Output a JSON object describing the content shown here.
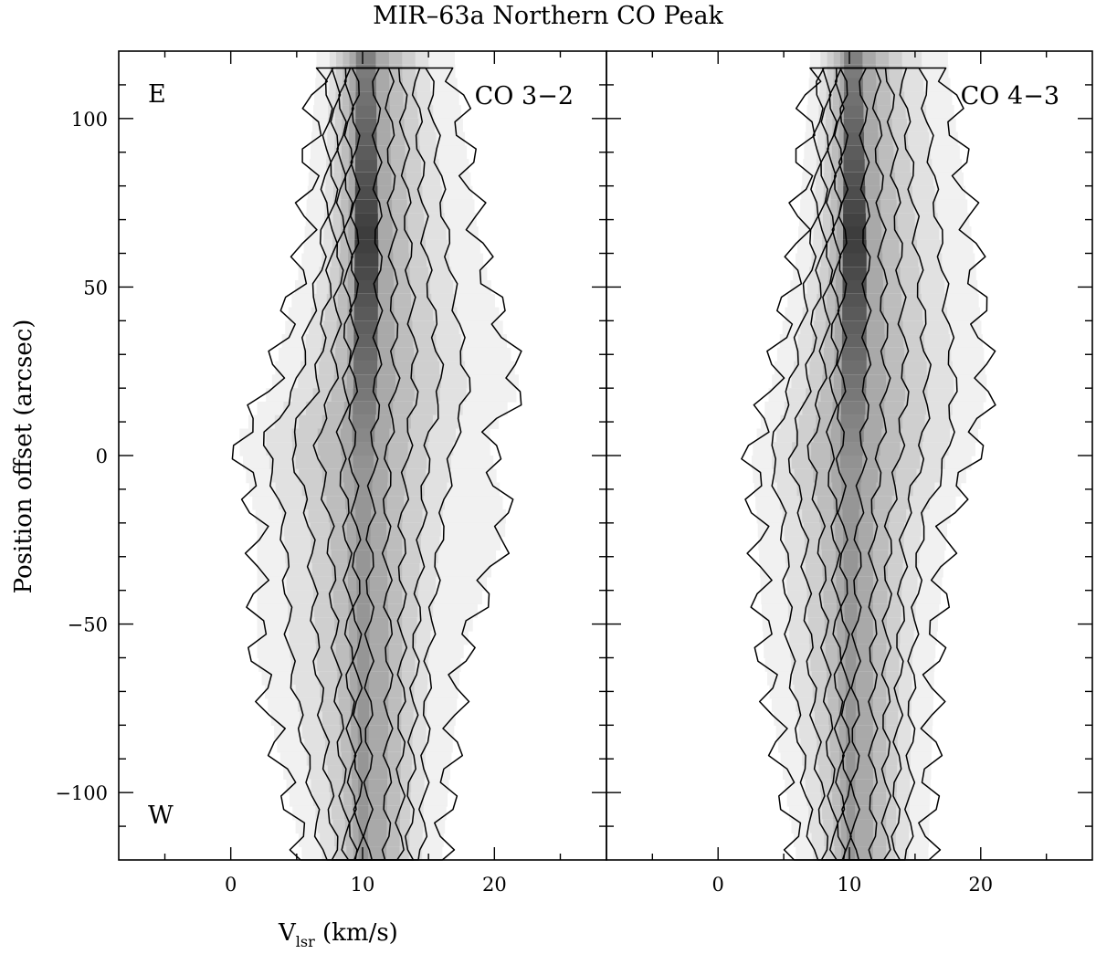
{
  "chart_data": {
    "type": "heatmap",
    "title": "MIR–63a Northern CO Peak",
    "xlabel_main": "V",
    "xlabel_sub": "lsr",
    "xlabel_unit": " (km/s)",
    "ylabel": "Position offset (arcsec)",
    "xlim": [
      -8.5,
      28.5
    ],
    "ylim": [
      -120,
      120
    ],
    "x_ticks": [
      0,
      10,
      20
    ],
    "y_ticks": [
      100,
      50,
      0,
      -50,
      -100
    ],
    "y_tick_labels": [
      "100",
      "50",
      "0",
      "−50",
      "−100"
    ],
    "panels": [
      {
        "name": "CO 3−2",
        "east_label": "E",
        "west_label": "W",
        "line_center_kms": 10.0,
        "peak_offset_arcsec": 65,
        "profiles": [
          {
            "offset": 115,
            "left": [
              6.5,
              7.5,
              8.0,
              8.5,
              9.0,
              9.5
            ],
            "right": [
              17.0,
              15.0,
              14.0,
              13.0,
              12.0,
              11.0
            ]
          },
          {
            "offset": 60,
            "left": [
              5.5,
              7.0,
              7.7,
              8.3,
              8.9,
              9.4
            ],
            "right": [
              19.0,
              16.5,
              14.8,
              13.5,
              12.3,
              11.2
            ]
          },
          {
            "offset": 20,
            "left": [
              3.0,
              5.0,
              6.5,
              7.8,
              8.8,
              9.3
            ],
            "right": [
              22.0,
              18.0,
              16.0,
              14.0,
              12.5,
              11.1
            ]
          },
          {
            "offset": 5,
            "left": [
              0.5,
              2.5,
              4.5,
              6.5,
              8.3,
              9.2
            ],
            "right": [
              19.5,
              17.0,
              15.0,
              13.5,
              12.0,
              10.9
            ]
          },
          {
            "offset": -20,
            "left": [
              2.0,
              4.0,
              6.0,
              7.5,
              8.8,
              9.5
            ],
            "right": [
              21.0,
              16.0,
              14.5,
              13.0,
              11.8,
              10.6
            ]
          },
          {
            "offset": -60,
            "left": [
              2.0,
              4.5,
              6.5,
              8.0,
              9.0,
              9.6
            ],
            "right": [
              17.5,
              15.0,
              14.0,
              13.0,
              12.0,
              10.5
            ]
          },
          {
            "offset": -120,
            "left": [
              5.5,
              7.0,
              8.0,
              8.8,
              9.3,
              9.7
            ],
            "right": [
              16.0,
              14.5,
              13.5,
              12.8,
              11.8,
              10.4
            ]
          }
        ]
      },
      {
        "name": "CO 4−3",
        "east_label": "",
        "west_label": "",
        "line_center_kms": 10.0,
        "peak_offset_arcsec": 65,
        "profiles": [
          {
            "offset": 115,
            "left": [
              7.0,
              7.8,
              8.3,
              8.8,
              9.3,
              9.6
            ],
            "right": [
              17.5,
              15.5,
              14.0,
              13.0,
              12.0,
              11.0
            ]
          },
          {
            "offset": 60,
            "left": [
              6.0,
              7.2,
              7.9,
              8.5,
              9.0,
              9.5
            ],
            "right": [
              19.5,
              17.0,
              15.2,
              13.8,
              12.5,
              11.3
            ]
          },
          {
            "offset": 20,
            "left": [
              4.0,
              5.5,
              6.8,
              7.9,
              8.8,
              9.4
            ],
            "right": [
              20.5,
              18.0,
              16.0,
              14.3,
              12.8,
              11.3
            ]
          },
          {
            "offset": 0,
            "left": [
              2.5,
              4.0,
              5.5,
              7.0,
              8.5,
              9.3
            ],
            "right": [
              19.5,
              17.5,
              15.5,
              13.8,
              12.3,
              11.0
            ]
          },
          {
            "offset": -20,
            "left": [
              3.0,
              5.0,
              6.5,
              7.8,
              8.9,
              9.5
            ],
            "right": [
              17.5,
              15.5,
              14.2,
              13.0,
              11.8,
              10.7
            ]
          },
          {
            "offset": -60,
            "left": [
              3.5,
              5.5,
              7.0,
              8.2,
              9.1,
              9.7
            ],
            "right": [
              16.5,
              14.8,
              13.8,
              12.8,
              11.8,
              10.5
            ]
          },
          {
            "offset": -120,
            "left": [
              6.0,
              7.3,
              8.2,
              8.9,
              9.4,
              9.8
            ],
            "right": [
              16.0,
              14.5,
              13.5,
              12.8,
              11.8,
              10.4
            ]
          }
        ]
      }
    ]
  }
}
